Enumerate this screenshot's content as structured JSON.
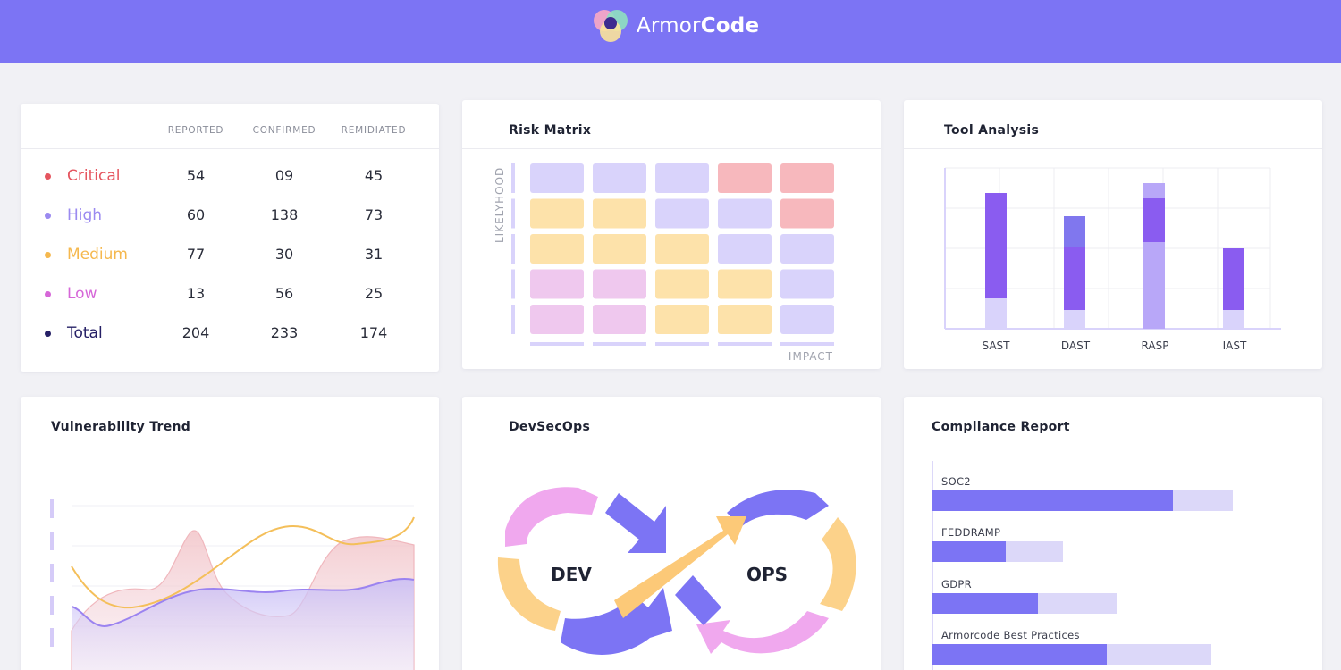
{
  "brand": {
    "name_light": "Armor",
    "name_bold": "Code"
  },
  "severity_table": {
    "columns": [
      "REPORTED",
      "CONFIRMED",
      "REMIDIATED"
    ],
    "rows": [
      {
        "label": "Critical",
        "color": "#e5555f",
        "values": [
          "54",
          "09",
          "45"
        ]
      },
      {
        "label": "High",
        "color": "#9b8af0",
        "values": [
          "60",
          "138",
          "73"
        ]
      },
      {
        "label": "Medium",
        "color": "#f5b84e",
        "values": [
          "77",
          "30",
          "31"
        ]
      },
      {
        "label": "Low",
        "color": "#d667d8",
        "values": [
          "13",
          "56",
          "25"
        ]
      },
      {
        "label": "Total",
        "color": "#262066",
        "values": [
          "204",
          "233",
          "174"
        ]
      }
    ]
  },
  "risk_matrix": {
    "title": "Risk Matrix",
    "y_label": "LIKELYHOOD",
    "x_label": "IMPACT",
    "cells": [
      [
        "lavender",
        "lavender",
        "lavender",
        "red",
        "red"
      ],
      [
        "yellow",
        "yellow",
        "lavender",
        "lavender",
        "red"
      ],
      [
        "yellow",
        "yellow",
        "yellow",
        "lavender",
        "lavender"
      ],
      [
        "pink",
        "pink",
        "yellow",
        "yellow",
        "lavender"
      ],
      [
        "pink",
        "pink",
        "yellow",
        "yellow",
        "lavender"
      ]
    ],
    "colors": {
      "lavender": "#d9d3fb",
      "red": "#f7b8bd",
      "yellow": "#fde2aa",
      "pink": "#efc8ee"
    }
  },
  "tool_analysis": {
    "title": "Tool Analysis",
    "categories": [
      "SAST",
      "DAST",
      "RASP",
      "IAST"
    ]
  },
  "vulnerability_trend": {
    "title": "Vulnerability Trend"
  },
  "devsecops": {
    "title": "DevSecOps",
    "left": "DEV",
    "right": "OPS"
  },
  "compliance": {
    "title": "Compliance Report",
    "items": [
      {
        "label": "SOC2",
        "done": 0.8,
        "total": 1.0
      },
      {
        "label": "FEDDRAMP",
        "done": 0.245,
        "total": 0.435
      },
      {
        "label": "GDPR",
        "done": 0.35,
        "total": 0.615
      },
      {
        "label": "Armorcode Best Practices",
        "done": 0.58,
        "total": 0.93
      }
    ]
  }
}
